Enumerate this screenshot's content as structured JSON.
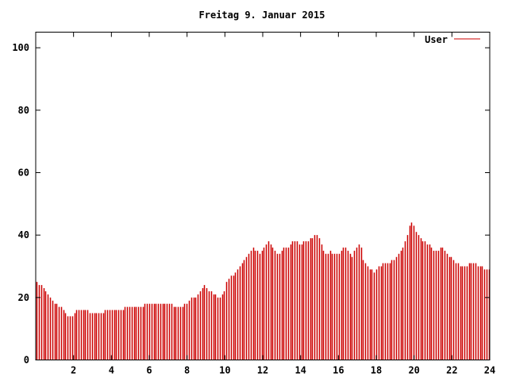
{
  "chart_data": {
    "type": "bar",
    "title": "Freitag 9. Januar 2015",
    "xlabel": "",
    "ylabel": "",
    "xlim": [
      0,
      24
    ],
    "ylim": [
      0,
      105
    ],
    "x_ticks": [
      2,
      4,
      6,
      8,
      10,
      12,
      14,
      16,
      18,
      20,
      22,
      24
    ],
    "x_tick_labels": [
      "2",
      "4",
      "6",
      "8",
      "10",
      "12",
      "14",
      "16",
      "18",
      "20",
      "22",
      "24"
    ],
    "y_ticks": [
      0,
      20,
      40,
      60,
      80,
      100
    ],
    "y_tick_labels": [
      "0",
      "20",
      "40",
      "60",
      "80",
      "100"
    ],
    "grid": false,
    "legend_position": "top-right",
    "series": [
      {
        "name": "User",
        "color": "#cc0000",
        "sample_interval_hours": 0.1667,
        "values": [
          25,
          24,
          24,
          23,
          22,
          21,
          20,
          19,
          18,
          18,
          17,
          17,
          16,
          15,
          14,
          14,
          14,
          15,
          16,
          16,
          16,
          16,
          16,
          16,
          15,
          15,
          15,
          15,
          15,
          15,
          15,
          16,
          16,
          16,
          16,
          16,
          16,
          16,
          16,
          16,
          17,
          17,
          17,
          17,
          17,
          17,
          17,
          17,
          17,
          18,
          18,
          18,
          18,
          18,
          18,
          18,
          18,
          18,
          18,
          18,
          18,
          18,
          17,
          17,
          17,
          17,
          17,
          18,
          18,
          19,
          20,
          20,
          20,
          21,
          22,
          23,
          24,
          23,
          22,
          22,
          21,
          21,
          20,
          20,
          21,
          22,
          25,
          26,
          27,
          27,
          28,
          29,
          30,
          31,
          32,
          33,
          34,
          35,
          36,
          35,
          35,
          34,
          35,
          36,
          37,
          38,
          37,
          36,
          35,
          34,
          34,
          35,
          36,
          36,
          36,
          37,
          38,
          38,
          38,
          37,
          37,
          38,
          38,
          38,
          39,
          39,
          40,
          40,
          39,
          37,
          35,
          34,
          34,
          35,
          34,
          34,
          34,
          34,
          35,
          36,
          36,
          35,
          34,
          33,
          35,
          36,
          37,
          36,
          32,
          31,
          30,
          29,
          29,
          28,
          29,
          30,
          30,
          31,
          31,
          31,
          31,
          32,
          32,
          33,
          34,
          35,
          36,
          38,
          40,
          43,
          44,
          43,
          41,
          40,
          39,
          38,
          38,
          37,
          37,
          36,
          35,
          35,
          35,
          36,
          36,
          35,
          34,
          33,
          33,
          32,
          31,
          31,
          30,
          30,
          30,
          30,
          31,
          31,
          31,
          31,
          30,
          30,
          30,
          29,
          29,
          29
        ]
      }
    ]
  }
}
